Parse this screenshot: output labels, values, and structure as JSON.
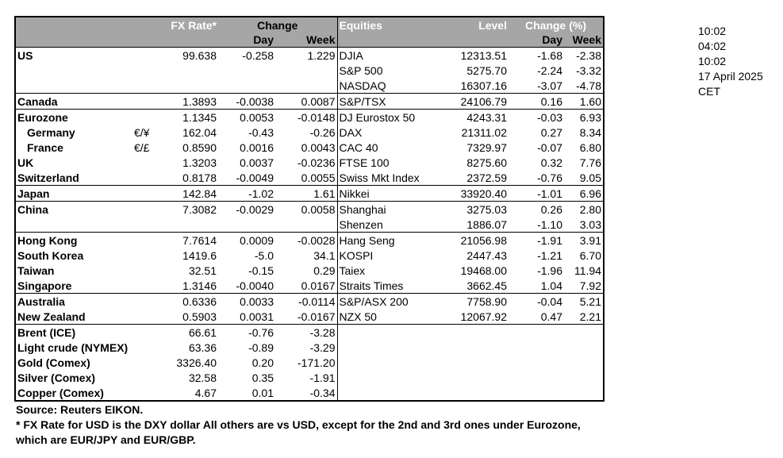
{
  "headers": {
    "fx_rate": "FX Rate*",
    "change": "Change",
    "day": "Day",
    "week": "Week",
    "equities": "Equities",
    "level": "Level",
    "change_pct": "Change (%)"
  },
  "rows": [
    {
      "name": "US",
      "sym": "",
      "fx": "99.638",
      "fxd": "-0.258",
      "fxw": "1.229",
      "eq": "DJIA",
      "lvl": "12313.51",
      "ed": "-1.68",
      "ew": "-2.38"
    },
    {
      "name": "",
      "sym": "",
      "fx": "",
      "fxd": "",
      "fxw": "",
      "eq": "S&P 500",
      "lvl": "5275.70",
      "ed": "-2.24",
      "ew": "-3.32"
    },
    {
      "name": "",
      "sym": "",
      "fx": "",
      "fxd": "",
      "fxw": "",
      "eq": "NASDAQ",
      "lvl": "16307.16",
      "ed": "-3.07",
      "ew": "-4.78"
    },
    {
      "name": "Canada",
      "sym": "",
      "fx": "1.3893",
      "fxd": "-0.0038",
      "fxw": "0.0087",
      "eq": "S&P/TSX",
      "lvl": "24106.79",
      "ed": "0.16",
      "ew": "1.60"
    },
    {
      "name": "Eurozone",
      "sym": "",
      "fx": "1.1345",
      "fxd": "0.0053",
      "fxw": "-0.0148",
      "eq": "DJ Eurostox 50",
      "lvl": "4243.31",
      "ed": "-0.03",
      "ew": "6.93"
    },
    {
      "name": "Germany",
      "sym": "€/¥",
      "fx": "162.04",
      "fxd": "-0.43",
      "fxw": "-0.26",
      "eq": "DAX",
      "lvl": "21311.02",
      "ed": "0.27",
      "ew": "8.34"
    },
    {
      "name": "France",
      "sym": "€/£",
      "fx": "0.8590",
      "fxd": "0.0016",
      "fxw": "0.0043",
      "eq": "CAC 40",
      "lvl": "7329.97",
      "ed": "-0.07",
      "ew": "6.80"
    },
    {
      "name": "UK",
      "sym": "",
      "fx": "1.3203",
      "fxd": "0.0037",
      "fxw": "-0.0236",
      "eq": "FTSE 100",
      "lvl": "8275.60",
      "ed": "0.32",
      "ew": "7.76"
    },
    {
      "name": "Switzerland",
      "sym": "",
      "fx": "0.8178",
      "fxd": "-0.0049",
      "fxw": "0.0055",
      "eq": "Swiss Mkt Index",
      "lvl": "2372.59",
      "ed": "-0.76",
      "ew": "9.05"
    },
    {
      "name": "Japan",
      "sym": "",
      "fx": "142.84",
      "fxd": "-1.02",
      "fxw": "1.61",
      "eq": "Nikkei",
      "lvl": "33920.40",
      "ed": "-1.01",
      "ew": "6.96"
    },
    {
      "name": "China",
      "sym": "",
      "fx": "7.3082",
      "fxd": "-0.0029",
      "fxw": "0.0058",
      "eq": "Shanghai",
      "lvl": "3275.03",
      "ed": "0.26",
      "ew": "2.80"
    },
    {
      "name": "",
      "sym": "",
      "fx": "",
      "fxd": "",
      "fxw": "",
      "eq": "Shenzen",
      "lvl": "1886.07",
      "ed": "-1.10",
      "ew": "3.03"
    },
    {
      "name": "Hong Kong",
      "sym": "",
      "fx": "7.7614",
      "fxd": "0.0009",
      "fxw": "-0.0028",
      "eq": "Hang Seng",
      "lvl": "21056.98",
      "ed": "-1.91",
      "ew": "3.91"
    },
    {
      "name": "South Korea",
      "sym": "",
      "fx": "1419.6",
      "fxd": "-5.0",
      "fxw": "34.1",
      "eq": "KOSPI",
      "lvl": "2447.43",
      "ed": "-1.21",
      "ew": "6.70"
    },
    {
      "name": "Taiwan",
      "sym": "",
      "fx": "32.51",
      "fxd": "-0.15",
      "fxw": "0.29",
      "eq": "Taiex",
      "lvl": "19468.00",
      "ed": "-1.96",
      "ew": "11.94"
    },
    {
      "name": "Singapore",
      "sym": "",
      "fx": "1.3146",
      "fxd": "-0.0040",
      "fxw": "0.0167",
      "eq": "Straits Times",
      "lvl": "3662.45",
      "ed": "1.04",
      "ew": "7.92"
    },
    {
      "name": "Australia",
      "sym": "",
      "fx": "0.6336",
      "fxd": "0.0033",
      "fxw": "-0.0114",
      "eq": "S&P/ASX  200",
      "lvl": "7758.90",
      "ed": "-0.04",
      "ew": "5.21"
    },
    {
      "name": "New Zealand",
      "sym": "",
      "fx": "0.5903",
      "fxd": "0.0031",
      "fxw": "-0.0167",
      "eq": "NZX 50",
      "lvl": "12067.92",
      "ed": "0.47",
      "ew": "2.21"
    },
    {
      "name": "Brent (ICE)",
      "sym": "",
      "fx": "66.61",
      "fxd": "-0.76",
      "fxw": "-3.28",
      "eq": "",
      "lvl": "",
      "ed": "",
      "ew": ""
    },
    {
      "name": "Light crude (NYMEX)",
      "sym": "",
      "fx": "63.36",
      "fxd": "-0.89",
      "fxw": "-3.29",
      "eq": "",
      "lvl": "",
      "ed": "",
      "ew": ""
    },
    {
      "name": "Gold (Comex)",
      "sym": "",
      "fx": "3326.40",
      "fxd": "0.20",
      "fxw": "-171.20",
      "eq": "",
      "lvl": "",
      "ed": "",
      "ew": ""
    },
    {
      "name": "Silver (Comex)",
      "sym": "",
      "fx": "32.58",
      "fxd": "0.35",
      "fxw": "-1.91",
      "eq": "",
      "lvl": "",
      "ed": "",
      "ew": ""
    },
    {
      "name": "Copper (Comex)",
      "sym": "",
      "fx": "4.67",
      "fxd": "0.01",
      "fxw": "-0.34",
      "eq": "",
      "lvl": "",
      "ed": "",
      "ew": ""
    }
  ],
  "side": [
    "10:02",
    "04:02",
    "10:02",
    "17 April 2025",
    "CET"
  ],
  "notes": {
    "source": "Source:  Reuters EIKON.",
    "note1": "* FX Rate for USD is the DXY dollar  All others are vs USD, except for the 2nd and 3rd ones under Eurozone,",
    "note2": "  which are EUR/JPY and EUR/GBP."
  }
}
